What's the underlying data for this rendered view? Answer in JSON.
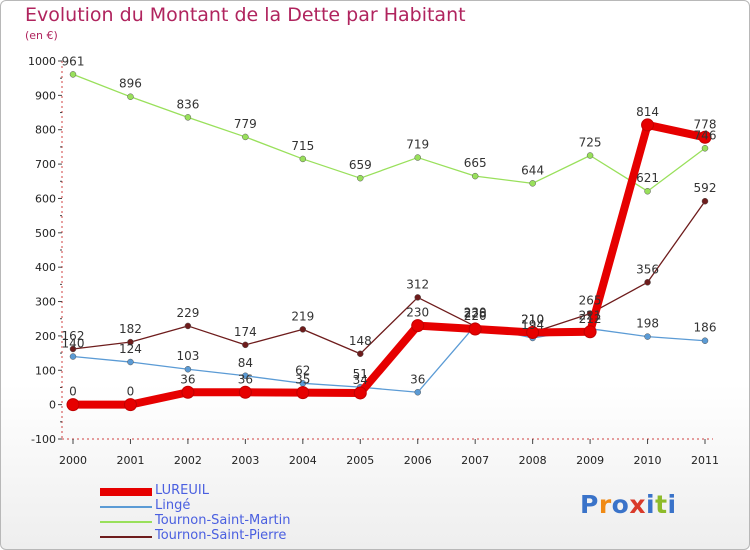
{
  "title": "Evolution du Montant de la Dette par Habitant",
  "subtitle": "(en €)",
  "chart_data": {
    "type": "line",
    "title": "Evolution du Montant de la Dette par Habitant",
    "ylabel": "(en €)",
    "xlabel": "",
    "x": [
      "2000",
      "2001",
      "2002",
      "2003",
      "2004",
      "2005",
      "2006",
      "2007",
      "2008",
      "2009",
      "2010",
      "2011"
    ],
    "ylim": [
      -100,
      1000
    ],
    "yticks": [
      -100,
      0,
      100,
      200,
      300,
      400,
      500,
      600,
      700,
      800,
      900,
      1000
    ],
    "grid": false,
    "legend_position": "bottom-left",
    "series": [
      {
        "name": "LUREUIL",
        "color": "#e60000",
        "values": [
          0,
          0,
          36,
          36,
          35,
          34,
          230,
          220,
          210,
          212,
          814,
          778
        ],
        "labels": [
          "0",
          "0",
          "36",
          "36",
          "35",
          "34",
          "230",
          "220",
          "210",
          "212",
          "814",
          "778"
        ]
      },
      {
        "name": "Lingé",
        "color": "#5b9bd5",
        "values": [
          140,
          124,
          103,
          84,
          62,
          51,
          36,
          230,
          194,
          221,
          198,
          186
        ],
        "labels": [
          "140",
          "124",
          "103",
          "84",
          "62",
          "51",
          "36",
          "230",
          "194",
          "221",
          "198",
          "186"
        ]
      },
      {
        "name": "Tournon-Saint-Martin",
        "color": "#99e05b",
        "values": [
          961,
          896,
          836,
          779,
          715,
          659,
          719,
          665,
          644,
          725,
          621,
          746
        ],
        "labels": [
          "961",
          "896",
          "836",
          "779",
          "715",
          "659",
          "719",
          "665",
          "644",
          "725",
          "621",
          "746"
        ]
      },
      {
        "name": "Tournon-Saint-Pierre",
        "color": "#6e1c1c",
        "values": [
          162,
          182,
          229,
          174,
          219,
          148,
          312,
          228,
          210,
          265,
          356,
          592
        ],
        "labels": [
          "162",
          "182",
          "229",
          "174",
          "219",
          "148",
          "312",
          "228",
          "210",
          "265",
          "356",
          "592"
        ]
      }
    ]
  },
  "legend": [
    {
      "label": "LUREUIL",
      "color": "#e60000"
    },
    {
      "label": "Lingé",
      "color": "#5b9bd5"
    },
    {
      "label": "Tournon-Saint-Martin",
      "color": "#99e05b"
    },
    {
      "label": "Tournon-Saint-Pierre",
      "color": "#6e1c1c"
    }
  ],
  "logo": {
    "text": "Proxiti",
    "icon": "proxiti-logo",
    "colors": [
      "#3a73c9",
      "#f08a14",
      "#3a73c9",
      "#d93a2a",
      "#3a73c9",
      "#8dbb2a",
      "#3a73c9"
    ]
  }
}
